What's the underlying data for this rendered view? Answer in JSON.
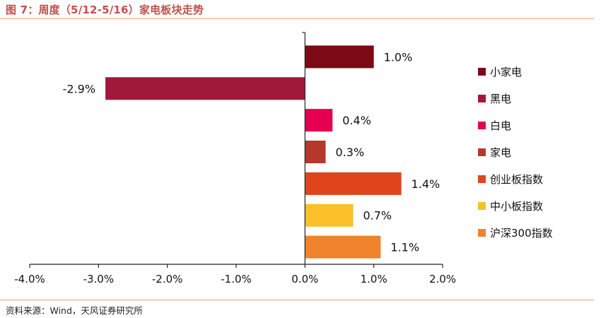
{
  "header": {
    "title": "图 7：周度（5/12-5/16）家电板块走势"
  },
  "footer": {
    "source": "资料来源：Wind，天风证券研究所"
  },
  "chart_data": {
    "type": "bar",
    "orientation": "horizontal",
    "categories": [
      "小家电",
      "黑电",
      "白电",
      "家电",
      "创业板指数",
      "中小板指数",
      "沪深300指数"
    ],
    "values": [
      1.0,
      -2.9,
      0.4,
      0.3,
      1.4,
      0.7,
      1.1
    ],
    "value_labels": [
      "1.0%",
      "-2.9%",
      "0.4%",
      "0.3%",
      "1.4%",
      "0.7%",
      "1.1%"
    ],
    "colors": [
      "#7b0a15",
      "#a0193a",
      "#e5004f",
      "#b5392a",
      "#e0441b",
      "#fbbf2a",
      "#f0832b"
    ],
    "xlim": [
      -4.0,
      2.0
    ],
    "xticks": [
      -4.0,
      -3.0,
      -2.0,
      -1.0,
      0.0,
      1.0,
      2.0
    ],
    "xtick_labels": [
      "-4.0%",
      "-3.0%",
      "-2.0%",
      "-1.0%",
      "0.0%",
      "1.0%",
      "2.0%"
    ],
    "legend": "right",
    "grid": false
  }
}
